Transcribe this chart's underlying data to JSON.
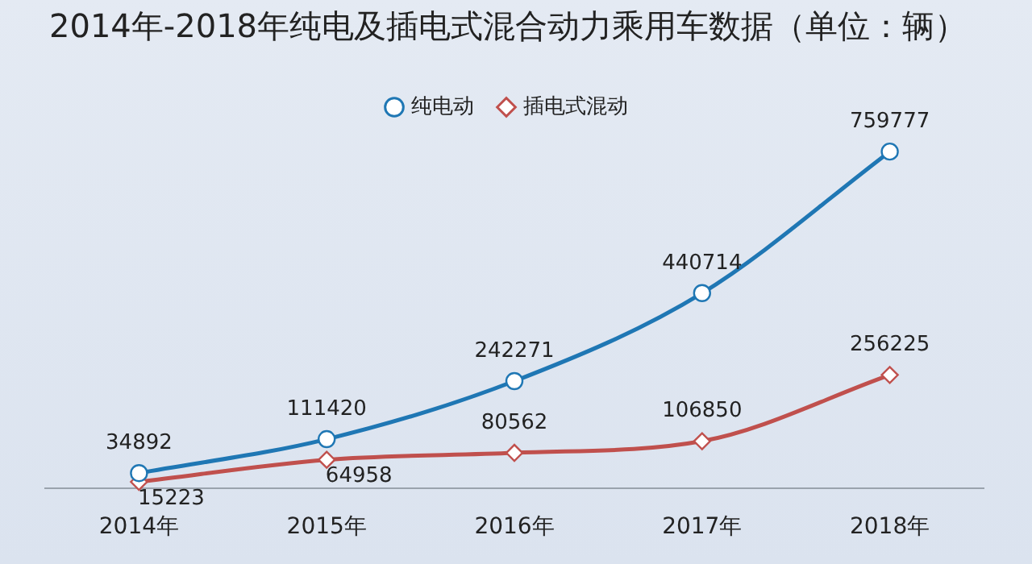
{
  "chart_data": {
    "type": "line",
    "title": "2014年-2018年纯电及插电式混合动力乘用车数据（单位：辆）",
    "categories": [
      "2014年",
      "2015年",
      "2016年",
      "2017年",
      "2018年"
    ],
    "series": [
      {
        "name": "纯电动",
        "color": "#1f77b4",
        "marker": "circle",
        "values": [
          34892,
          111420,
          242271,
          440714,
          759777
        ]
      },
      {
        "name": "插电式混动",
        "color": "#c0504d",
        "marker": "diamond",
        "values": [
          15223,
          64958,
          80562,
          106850,
          256225
        ]
      }
    ],
    "data_labels": true,
    "legend": "top",
    "grid": false,
    "tick_labels": "x"
  }
}
